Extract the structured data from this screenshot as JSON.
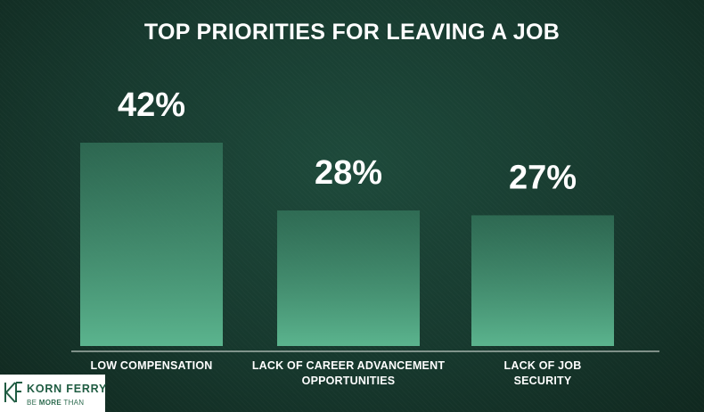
{
  "chart_data": {
    "type": "bar",
    "title": "TOP PRIORITIES FOR LEAVING A JOB",
    "categories": [
      [
        "LOW COMPENSATION"
      ],
      [
        "LACK OF CAREER ADVANCEMENT",
        "OPPORTUNITIES"
      ],
      [
        "LACK OF JOB",
        "SECURITY"
      ]
    ],
    "values": [
      42,
      28,
      27
    ],
    "value_labels": [
      "42%",
      "28%",
      "27%"
    ],
    "value_unit": "%",
    "ylim": [
      0,
      42
    ],
    "grid": false,
    "colors": {
      "bar_top": "#3e8a6b",
      "bar_bottom": "#5bb48e",
      "baseline": "#e8efe9"
    }
  },
  "brand": {
    "name": "KORN FERRY",
    "tagline_pre": "BE ",
    "tagline_bold": "MORE",
    "tagline_post": " THAN",
    "color": "#1f5c42"
  }
}
